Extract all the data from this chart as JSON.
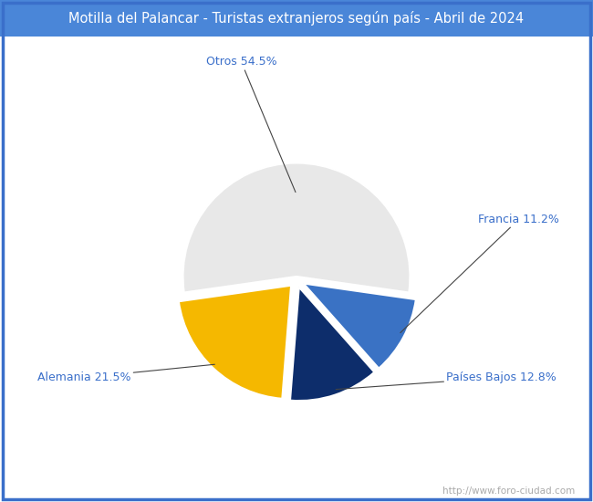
{
  "title": "Motilla del Palancar - Turistas extranjeros según país - Abril de 2024",
  "title_bg_color": "#4a86d8",
  "title_text_color": "#ffffff",
  "slices": [
    {
      "label": "Otros",
      "pct": 54.5,
      "color": "#e8e8e8"
    },
    {
      "label": "Francia",
      "pct": 11.2,
      "color": "#3a72c4"
    },
    {
      "label": "Países Bajos",
      "pct": 12.8,
      "color": "#0d2d6b"
    },
    {
      "label": "Alemania",
      "pct": 21.5,
      "color": "#f5b800"
    }
  ],
  "explode": [
    0.02,
    0.05,
    0.05,
    0.05
  ],
  "label_color": "#3a6fca",
  "watermark": "http://www.foro-ciudad.com",
  "watermark_color": "#aaaaaa",
  "bg_color": "#ffffff",
  "border_color": "#3a6fca"
}
